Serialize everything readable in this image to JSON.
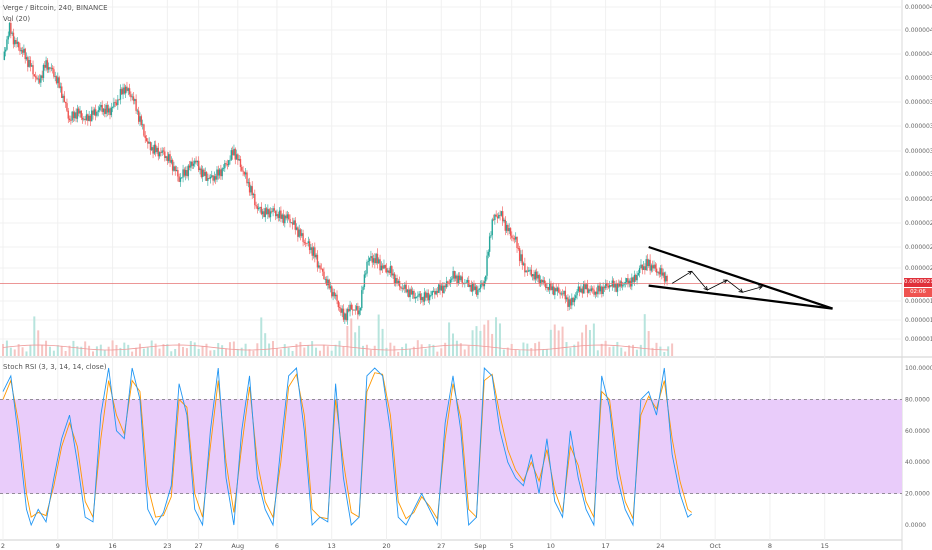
{
  "header": {
    "symbol_title": "Verge / Bitcoin, 240, BINANCE",
    "volume_label": "Vol (20)",
    "stoch_label": "Stoch RSI (3, 3, 14, 14, close)"
  },
  "price_tag": {
    "value": "0.00000211",
    "countdown": "02:06"
  },
  "colors": {
    "up": "#26a69a",
    "down": "#ef5350",
    "price_line": "#e57373",
    "stoch_band": "#e9ccfa",
    "stoch_k": "#2196f3",
    "stoch_d": "#ff9800",
    "trendline": "#000000"
  },
  "chart_data": {
    "type": "candlestick",
    "title": "Verge / Bitcoin, 240, BINANCE",
    "price_axis": {
      "ticks": [
        {
          "label": "0.00000440",
          "value": 440
        },
        {
          "label": "0.00000420",
          "value": 420
        },
        {
          "label": "0.00000400",
          "value": 400
        },
        {
          "label": "0.00000380",
          "value": 380
        },
        {
          "label": "0.00000360",
          "value": 360
        },
        {
          "label": "0.00000340",
          "value": 340
        },
        {
          "label": "0.00000320",
          "value": 320
        },
        {
          "label": "0.00000300",
          "value": 300
        },
        {
          "label": "0.00000280",
          "value": 280
        },
        {
          "label": "0.00000260",
          "value": 260
        },
        {
          "label": "0.00000240",
          "value": 240
        },
        {
          "label": "0.00000225",
          "value": 225
        },
        {
          "label": "0.00000195",
          "value": 195
        },
        {
          "label": "0.00000180",
          "value": 180
        },
        {
          "label": "0.00000164",
          "value": 164
        }
      ],
      "unit_scale": "satoshi",
      "range": [
        160,
        445
      ]
    },
    "x_axis": {
      "ticks": [
        {
          "label": "2",
          "day": 0
        },
        {
          "label": "9",
          "day": 7
        },
        {
          "label": "16",
          "day": 14
        },
        {
          "label": "23",
          "day": 21
        },
        {
          "label": "27",
          "day": 25
        },
        {
          "label": "Aug",
          "day": 30
        },
        {
          "label": "6",
          "day": 35
        },
        {
          "label": "13",
          "day": 42
        },
        {
          "label": "20",
          "day": 49
        },
        {
          "label": "27",
          "day": 56
        },
        {
          "label": "Sep",
          "day": 61
        },
        {
          "label": "5",
          "day": 65
        },
        {
          "label": "10",
          "day": 70
        },
        {
          "label": "17",
          "day": 77
        },
        {
          "label": "24",
          "day": 84
        },
        {
          "label": "Oct",
          "day": 91
        },
        {
          "label": "8",
          "day": 98
        },
        {
          "label": "15",
          "day": 105
        }
      ],
      "range": [
        0,
        115
      ]
    },
    "price_path": [
      [
        0,
        395
      ],
      [
        0.8,
        422
      ],
      [
        1.5,
        410
      ],
      [
        2.5,
        402
      ],
      [
        3.5,
        390
      ],
      [
        4.5,
        376
      ],
      [
        5.5,
        392
      ],
      [
        6.5,
        384
      ],
      [
        7.5,
        368
      ],
      [
        8.5,
        345
      ],
      [
        9.5,
        352
      ],
      [
        10.5,
        345
      ],
      [
        11.5,
        350
      ],
      [
        12.5,
        355
      ],
      [
        13.5,
        352
      ],
      [
        14.5,
        360
      ],
      [
        15.5,
        372
      ],
      [
        16.5,
        365
      ],
      [
        17.5,
        345
      ],
      [
        18.5,
        325
      ],
      [
        19.5,
        320
      ],
      [
        20.5,
        318
      ],
      [
        21.5,
        310
      ],
      [
        22.5,
        296
      ],
      [
        23.5,
        303
      ],
      [
        24.5,
        312
      ],
      [
        25.5,
        300
      ],
      [
        26.5,
        296
      ],
      [
        27.5,
        300
      ],
      [
        28.5,
        308
      ],
      [
        29.5,
        320
      ],
      [
        30.5,
        305
      ],
      [
        31.5,
        290
      ],
      [
        32.5,
        272
      ],
      [
        33.5,
        268
      ],
      [
        34.5,
        270
      ],
      [
        35.5,
        265
      ],
      [
        36.5,
        264
      ],
      [
        37.5,
        255
      ],
      [
        38.5,
        245
      ],
      [
        39.5,
        238
      ],
      [
        40.5,
        225
      ],
      [
        41.5,
        210
      ],
      [
        42.5,
        198
      ],
      [
        43.5,
        182
      ],
      [
        44.5,
        190
      ],
      [
        45.5,
        186
      ],
      [
        46.5,
        230
      ],
      [
        47.5,
        232
      ],
      [
        48.5,
        225
      ],
      [
        49.5,
        222
      ],
      [
        50.5,
        210
      ],
      [
        51.5,
        205
      ],
      [
        52.5,
        200
      ],
      [
        53.5,
        198
      ],
      [
        54.5,
        200
      ],
      [
        55.5,
        205
      ],
      [
        56.5,
        208
      ],
      [
        57.5,
        218
      ],
      [
        58.5,
        214
      ],
      [
        59.5,
        210
      ],
      [
        60.5,
        204
      ],
      [
        61.5,
        212
      ],
      [
        62.5,
        262
      ],
      [
        63.5,
        268
      ],
      [
        64.5,
        254
      ],
      [
        65.5,
        245
      ],
      [
        66.5,
        225
      ],
      [
        67.5,
        220
      ],
      [
        68.5,
        215
      ],
      [
        69.5,
        208
      ],
      [
        70.5,
        205
      ],
      [
        71.5,
        202
      ],
      [
        72.5,
        192
      ],
      [
        73.5,
        205
      ],
      [
        74.5,
        207
      ],
      [
        75.5,
        203
      ],
      [
        76.5,
        206
      ],
      [
        77.5,
        210
      ],
      [
        78.5,
        208
      ],
      [
        79.5,
        212
      ],
      [
        80.5,
        213
      ],
      [
        81.5,
        225
      ],
      [
        82.5,
        228
      ],
      [
        83.5,
        223
      ],
      [
        84.5,
        218
      ],
      [
        85,
        212
      ]
    ],
    "volume_spikes": [
      4,
      33,
      44,
      45,
      48,
      57,
      60,
      61,
      62,
      63,
      70,
      71,
      74,
      75,
      82
    ],
    "current_price": 211,
    "drawings": {
      "upper_trendline": [
        [
          82.5,
          240
        ],
        [
          106,
          189
        ]
      ],
      "lower_trendline": [
        [
          82.5,
          209
        ],
        [
          106,
          189
        ]
      ],
      "arrows": [
        [
          [
            85.5,
            211
          ],
          [
            88,
            222
          ]
        ],
        [
          [
            88,
            222
          ],
          [
            90,
            205
          ]
        ],
        [
          [
            90,
            205
          ],
          [
            92.5,
            214
          ]
        ],
        [
          [
            92.5,
            214
          ],
          [
            94.5,
            203
          ]
        ],
        [
          [
            94.5,
            203
          ],
          [
            97,
            208
          ]
        ]
      ]
    },
    "stoch_rsi": {
      "ylim": [
        0,
        100
      ],
      "ticks": [
        {
          "label": "100.0000",
          "value": 100
        },
        {
          "label": "80.0000",
          "value": 80
        },
        {
          "label": "60.0000",
          "value": 60
        },
        {
          "label": "40.0000",
          "value": 40
        },
        {
          "label": "20.0000",
          "value": 20
        },
        {
          "label": "0.0000",
          "value": 0
        }
      ],
      "band": [
        20,
        80
      ],
      "k": [
        [
          0,
          85
        ],
        [
          1,
          95
        ],
        [
          2,
          55
        ],
        [
          3,
          10
        ],
        [
          3.6,
          0
        ],
        [
          4.5,
          10
        ],
        [
          5.5,
          2
        ],
        [
          6.5,
          30
        ],
        [
          7.5,
          55
        ],
        [
          8.5,
          70
        ],
        [
          9.5,
          40
        ],
        [
          10.5,
          5
        ],
        [
          11.5,
          2
        ],
        [
          12.5,
          70
        ],
        [
          13.5,
          100
        ],
        [
          14.5,
          60
        ],
        [
          15.5,
          55
        ],
        [
          16.5,
          100
        ],
        [
          17.5,
          80
        ],
        [
          18.5,
          10
        ],
        [
          19.5,
          0
        ],
        [
          20.5,
          8
        ],
        [
          21.5,
          25
        ],
        [
          22.5,
          90
        ],
        [
          23.5,
          70
        ],
        [
          24.5,
          10
        ],
        [
          25.5,
          0
        ],
        [
          26.5,
          60
        ],
        [
          27.5,
          100
        ],
        [
          28.5,
          30
        ],
        [
          29.5,
          0
        ],
        [
          30.5,
          60
        ],
        [
          31.5,
          95
        ],
        [
          32.5,
          30
        ],
        [
          33.5,
          10
        ],
        [
          34.5,
          0
        ],
        [
          35.5,
          50
        ],
        [
          36.5,
          95
        ],
        [
          37.5,
          100
        ],
        [
          38.5,
          60
        ],
        [
          39.5,
          0
        ],
        [
          40.5,
          5
        ],
        [
          41.5,
          2
        ],
        [
          42.5,
          90
        ],
        [
          43.5,
          30
        ],
        [
          44.5,
          0
        ],
        [
          45.5,
          5
        ],
        [
          46.5,
          95
        ],
        [
          47.5,
          100
        ],
        [
          48.5,
          95
        ],
        [
          49.5,
          60
        ],
        [
          50.5,
          5
        ],
        [
          51.5,
          0
        ],
        [
          52.5,
          10
        ],
        [
          53.5,
          20
        ],
        [
          54.5,
          10
        ],
        [
          55.5,
          0
        ],
        [
          56.5,
          65
        ],
        [
          57.5,
          95
        ],
        [
          58.5,
          60
        ],
        [
          59.5,
          0
        ],
        [
          60.5,
          5
        ],
        [
          61.5,
          100
        ],
        [
          62.5,
          95
        ],
        [
          63.5,
          60
        ],
        [
          64.5,
          40
        ],
        [
          65.5,
          30
        ],
        [
          66.5,
          25
        ],
        [
          67.5,
          45
        ],
        [
          68.5,
          20
        ],
        [
          69.5,
          55
        ],
        [
          70.5,
          15
        ],
        [
          71.5,
          5
        ],
        [
          72.5,
          60
        ],
        [
          73.5,
          30
        ],
        [
          74.5,
          10
        ],
        [
          75.5,
          0
        ],
        [
          76.5,
          95
        ],
        [
          77.5,
          75
        ],
        [
          78.5,
          30
        ],
        [
          79.5,
          10
        ],
        [
          80.5,
          0
        ],
        [
          81.5,
          80
        ],
        [
          82.5,
          85
        ],
        [
          83.5,
          70
        ],
        [
          84.5,
          100
        ],
        [
          85.5,
          45
        ],
        [
          86.5,
          20
        ],
        [
          87.5,
          5
        ],
        [
          88,
          7
        ]
      ],
      "d": [
        [
          0,
          80
        ],
        [
          1,
          92
        ],
        [
          2,
          65
        ],
        [
          3,
          20
        ],
        [
          3.6,
          5
        ],
        [
          4.5,
          8
        ],
        [
          5.5,
          6
        ],
        [
          6.5,
          25
        ],
        [
          7.5,
          50
        ],
        [
          8.5,
          65
        ],
        [
          9.5,
          50
        ],
        [
          10.5,
          15
        ],
        [
          11.5,
          5
        ],
        [
          12.5,
          55
        ],
        [
          13.5,
          92
        ],
        [
          14.5,
          70
        ],
        [
          15.5,
          58
        ],
        [
          16.5,
          92
        ],
        [
          17.5,
          85
        ],
        [
          18.5,
          25
        ],
        [
          19.5,
          5
        ],
        [
          20.5,
          6
        ],
        [
          21.5,
          18
        ],
        [
          22.5,
          80
        ],
        [
          23.5,
          75
        ],
        [
          24.5,
          20
        ],
        [
          25.5,
          5
        ],
        [
          26.5,
          50
        ],
        [
          27.5,
          92
        ],
        [
          28.5,
          40
        ],
        [
          29.5,
          8
        ],
        [
          30.5,
          50
        ],
        [
          31.5,
          88
        ],
        [
          32.5,
          40
        ],
        [
          33.5,
          15
        ],
        [
          34.5,
          5
        ],
        [
          35.5,
          40
        ],
        [
          36.5,
          88
        ],
        [
          37.5,
          96
        ],
        [
          38.5,
          70
        ],
        [
          39.5,
          10
        ],
        [
          40.5,
          5
        ],
        [
          41.5,
          4
        ],
        [
          42.5,
          80
        ],
        [
          43.5,
          40
        ],
        [
          44.5,
          8
        ],
        [
          45.5,
          5
        ],
        [
          46.5,
          85
        ],
        [
          47.5,
          97
        ],
        [
          48.5,
          96
        ],
        [
          49.5,
          70
        ],
        [
          50.5,
          15
        ],
        [
          51.5,
          4
        ],
        [
          52.5,
          8
        ],
        [
          53.5,
          18
        ],
        [
          54.5,
          12
        ],
        [
          55.5,
          4
        ],
        [
          56.5,
          55
        ],
        [
          57.5,
          90
        ],
        [
          58.5,
          68
        ],
        [
          59.5,
          10
        ],
        [
          60.5,
          5
        ],
        [
          61.5,
          92
        ],
        [
          62.5,
          96
        ],
        [
          63.5,
          70
        ],
        [
          64.5,
          48
        ],
        [
          65.5,
          35
        ],
        [
          66.5,
          28
        ],
        [
          67.5,
          40
        ],
        [
          68.5,
          28
        ],
        [
          69.5,
          48
        ],
        [
          70.5,
          22
        ],
        [
          71.5,
          8
        ],
        [
          72.5,
          50
        ],
        [
          73.5,
          38
        ],
        [
          74.5,
          15
        ],
        [
          75.5,
          5
        ],
        [
          76.5,
          85
        ],
        [
          77.5,
          80
        ],
        [
          78.5,
          40
        ],
        [
          79.5,
          15
        ],
        [
          80.5,
          4
        ],
        [
          81.5,
          70
        ],
        [
          82.5,
          82
        ],
        [
          83.5,
          74
        ],
        [
          84.5,
          92
        ],
        [
          85.5,
          55
        ],
        [
          86.5,
          28
        ],
        [
          87.5,
          10
        ],
        [
          88,
          8
        ]
      ]
    }
  }
}
